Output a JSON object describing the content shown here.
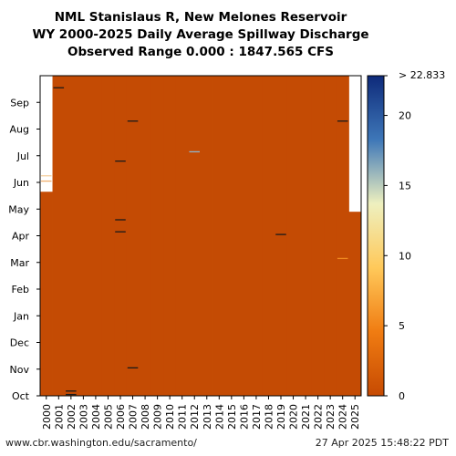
{
  "title": {
    "line1": "NML Stanislaus R, New Melones Reservoir",
    "line2": "WY 2000-2025 Daily Average Spillway Discharge",
    "line3": "Observed Range 0.000 : 1847.565 CFS"
  },
  "footer": {
    "source_url": "www.cbr.washington.edu/sacramento/",
    "timestamp": "27 Apr 2025 15:48:22 PDT"
  },
  "chart_data": {
    "type": "heatmap",
    "x_tick_labels": [
      "2000",
      "2001",
      "2002",
      "2003",
      "2004",
      "2005",
      "2006",
      "2007",
      "2008",
      "2009",
      "2010",
      "2011",
      "2012",
      "2013",
      "2014",
      "2015",
      "2016",
      "2017",
      "2018",
      "2019",
      "2020",
      "2021",
      "2022",
      "2023",
      "2024",
      "2025"
    ],
    "y_tick_labels": [
      "Oct",
      "Nov",
      "Dec",
      "Jan",
      "Feb",
      "Mar",
      "Apr",
      "May",
      "Jun",
      "Jul",
      "Aug",
      "Sep"
    ],
    "colorbar": {
      "ticks": [
        0,
        5,
        10,
        15,
        20
      ],
      "tick_labels": [
        "0",
        "5",
        "10",
        "15",
        "20"
      ],
      "top_label": "> 22.833",
      "range": [
        0,
        22.833
      ],
      "colors": [
        "#c64a02",
        "#f07c12",
        "#ffc95a",
        "#eef0bf",
        "#3e77b8",
        "#0e2a7a"
      ]
    },
    "fill_value": 0,
    "fill_color": "#c44b04",
    "water_years": [
      {
        "year": "2000",
        "data_from_month": 7.65
      },
      {
        "year": "2025",
        "data_to_month": 6.9
      }
    ],
    "events": [
      {
        "year": "2000",
        "month": 8.25,
        "color": "#f5d0a0"
      },
      {
        "year": "2000",
        "month": 8.05,
        "color": "#f0b070"
      },
      {
        "year": "2001",
        "month": 11.55,
        "color": "#1a1a1a"
      },
      {
        "year": "2002",
        "month": 0.18,
        "color": "#1a1a1a"
      },
      {
        "year": "2002",
        "month": 0.05,
        "color": "#1a1a1a"
      },
      {
        "year": "2006",
        "month": 8.8,
        "color": "#1a1a1a"
      },
      {
        "year": "2006",
        "month": 6.6,
        "color": "#1a1a1a"
      },
      {
        "year": "2006",
        "month": 6.15,
        "color": "#1a1a1a"
      },
      {
        "year": "2007",
        "month": 10.3,
        "color": "#1a1a1a"
      },
      {
        "year": "2007",
        "month": 1.05,
        "color": "#1a1a1a"
      },
      {
        "year": "2012",
        "month": 9.15,
        "color": "#8fb6d0"
      },
      {
        "year": "2019",
        "month": 6.05,
        "color": "#1a1a1a"
      },
      {
        "year": "2024",
        "month": 10.3,
        "color": "#1a1a1a"
      },
      {
        "year": "2024",
        "month": 5.15,
        "color": "#f08a20"
      }
    ]
  }
}
